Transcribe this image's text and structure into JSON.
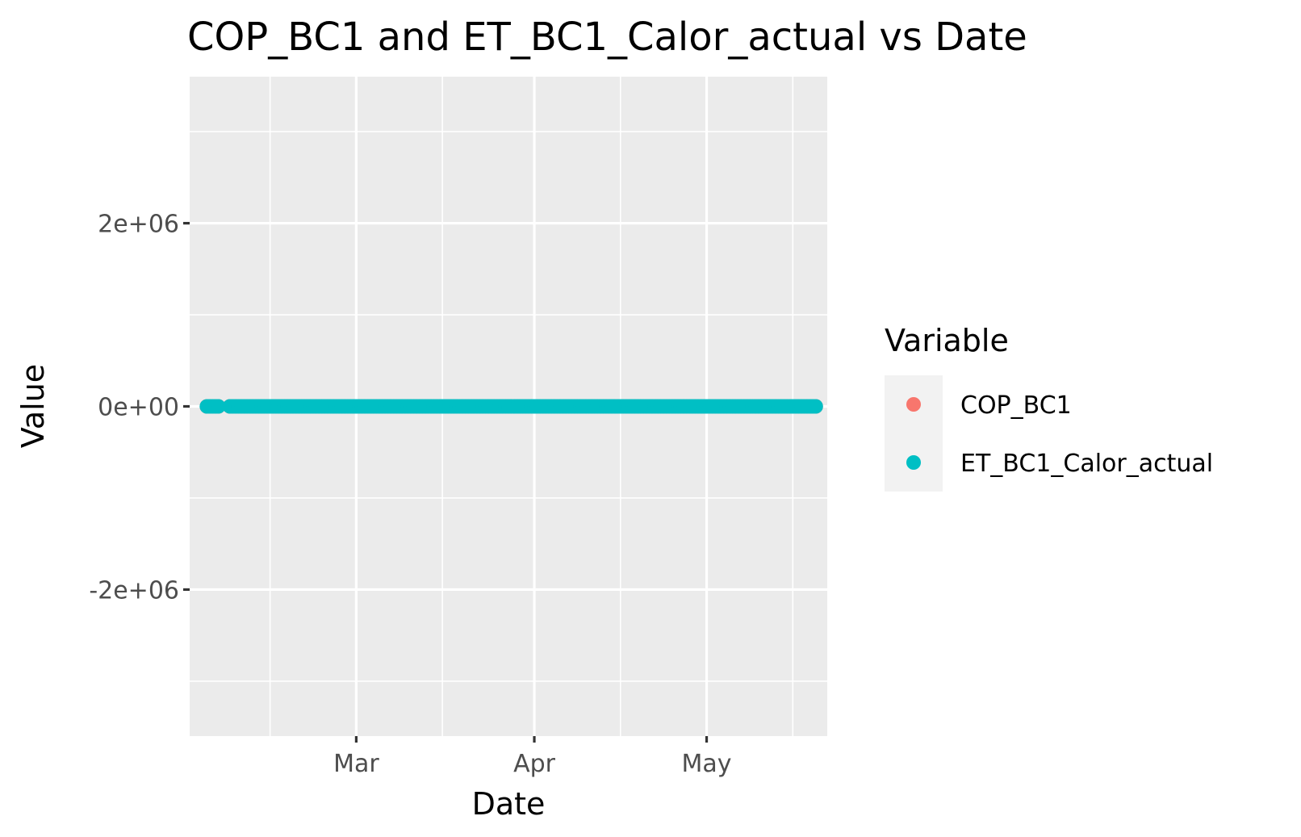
{
  "chart_data": {
    "type": "scatter",
    "title": "COP_BC1 and ET_BC1_Calor_actual vs Date",
    "xlabel": "Date",
    "ylabel": "Value",
    "x_ticks": [
      "Mar",
      "Apr",
      "May"
    ],
    "y_ticks": [
      "2e+06",
      "0e+00",
      "-2e+06"
    ],
    "ylim": [
      -3600000,
      3600000
    ],
    "xlim": [
      "2024-02-01",
      "2024-05-22"
    ],
    "grid": true,
    "legend": {
      "title": "Variable",
      "placement": "right",
      "entries": [
        {
          "label": "COP_BC1",
          "color": "#F8766D"
        },
        {
          "label": "ET_BC1_Calor_actual",
          "color": "#00BFC4"
        }
      ]
    },
    "series": [
      {
        "name": "COP_BC1",
        "color": "#F8766D",
        "ranges": [
          {
            "x_start": "2024-02-04",
            "x_end": "2024-02-06",
            "y": 0
          },
          {
            "x_start": "2024-02-08",
            "x_end": "2024-05-20",
            "y": 0
          }
        ]
      },
      {
        "name": "ET_BC1_Calor_actual",
        "color": "#00BFC4",
        "ranges": [
          {
            "x_start": "2024-02-04",
            "x_end": "2024-02-06",
            "y": 0
          },
          {
            "x_start": "2024-02-08",
            "x_end": "2024-05-20",
            "y": 0
          }
        ]
      }
    ]
  }
}
